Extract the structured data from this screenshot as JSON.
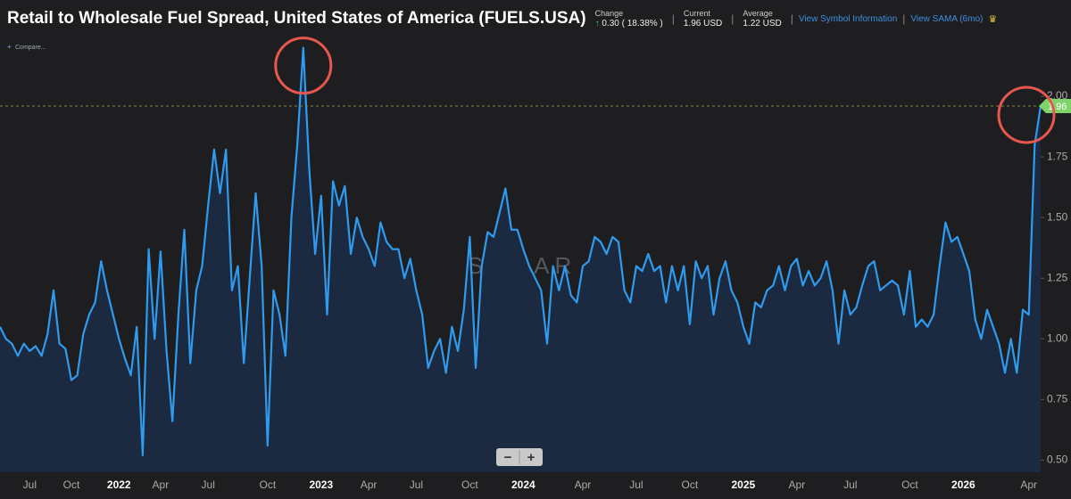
{
  "header": {
    "title": "Retail to Wholesale Fuel Spread, United States of America (FUELS.USA)",
    "change_label": "Change",
    "change_value": "0.30 ( 18.38% )",
    "current_label": "Current",
    "current_value": "1.96 USD",
    "average_label": "Average",
    "average_value": "1.22 USD",
    "link_info": "View Symbol Information",
    "link_sama": "View SAMA (6mo)",
    "compare": "Compare...",
    "watermark": "SONAR",
    "zoom_out": "−",
    "zoom_in": "+"
  },
  "chart_data": {
    "type": "line",
    "color": "#2f9bef",
    "area_color": "#1b2a40",
    "categories": [
      null,
      null,
      null,
      null,
      null,
      "Jul",
      null,
      null,
      null,
      null,
      null,
      null,
      "Oct",
      null,
      null,
      null,
      null,
      null,
      null,
      null,
      "2022",
      null,
      null,
      null,
      null,
      null,
      null,
      "Apr",
      null,
      null,
      null,
      null,
      null,
      null,
      null,
      "Jul",
      null,
      null,
      null,
      null,
      null,
      null,
      null,
      null,
      null,
      "Oct",
      null,
      null,
      null,
      null,
      null,
      null,
      null,
      null,
      "2023",
      null,
      null,
      null,
      null,
      null,
      null,
      null,
      "Apr",
      null,
      null,
      null,
      null,
      null,
      null,
      null,
      "Jul",
      null,
      null,
      null,
      null,
      null,
      null,
      null,
      null,
      "Oct",
      null,
      null,
      null,
      null,
      null,
      null,
      null,
      null,
      "2024",
      null,
      null,
      null,
      null,
      null,
      null,
      null,
      null,
      null,
      "Apr",
      null,
      null,
      null,
      null,
      null,
      null,
      null,
      null,
      "Jul",
      null,
      null,
      null,
      null,
      null,
      null,
      null,
      null,
      "Oct",
      null,
      null,
      null,
      null,
      null,
      null,
      null,
      null,
      "2025",
      null,
      null,
      null,
      null,
      null,
      null,
      null,
      null,
      "Apr",
      null,
      null,
      null,
      null,
      null,
      null,
      null,
      null,
      "Jul",
      null,
      null,
      null,
      null,
      null,
      null,
      null,
      null,
      null,
      "Oct",
      null,
      null,
      null,
      null,
      null,
      null,
      null,
      null,
      "2026",
      null,
      null,
      null,
      null,
      null,
      null,
      null,
      null,
      null,
      null,
      "Apr",
      null,
      null
    ],
    "values": [
      1.05,
      1.0,
      0.98,
      0.93,
      0.98,
      0.95,
      0.97,
      0.93,
      1.02,
      1.2,
      0.98,
      0.96,
      0.83,
      0.85,
      1.02,
      1.1,
      1.15,
      1.32,
      1.2,
      1.1,
      1.0,
      0.92,
      0.85,
      1.05,
      0.52,
      1.37,
      1.0,
      1.36,
      0.95,
      0.66,
      1.1,
      1.45,
      0.9,
      1.2,
      1.3,
      1.55,
      1.78,
      1.6,
      1.78,
      1.2,
      1.3,
      0.9,
      1.25,
      1.6,
      1.3,
      0.56,
      1.2,
      1.1,
      0.93,
      1.5,
      1.8,
      2.2,
      1.7,
      1.35,
      1.59,
      1.1,
      1.65,
      1.55,
      1.63,
      1.35,
      1.5,
      1.42,
      1.37,
      1.3,
      1.48,
      1.4,
      1.37,
      1.37,
      1.25,
      1.33,
      1.2,
      1.1,
      0.88,
      0.95,
      1.0,
      0.86,
      1.05,
      0.95,
      1.12,
      1.42,
      0.88,
      1.3,
      1.44,
      1.42,
      1.52,
      1.62,
      1.45,
      1.45,
      1.37,
      1.3,
      1.25,
      1.2,
      0.98,
      1.3,
      1.2,
      1.3,
      1.18,
      1.15,
      1.3,
      1.32,
      1.42,
      1.4,
      1.35,
      1.42,
      1.4,
      1.2,
      1.15,
      1.3,
      1.28,
      1.35,
      1.28,
      1.3,
      1.15,
      1.3,
      1.2,
      1.3,
      1.06,
      1.32,
      1.25,
      1.3,
      1.1,
      1.25,
      1.32,
      1.2,
      1.15,
      1.05,
      0.98,
      1.15,
      1.13,
      1.2,
      1.22,
      1.3,
      1.2,
      1.3,
      1.33,
      1.22,
      1.28,
      1.22,
      1.25,
      1.32,
      1.2,
      0.98,
      1.2,
      1.1,
      1.13,
      1.22,
      1.3,
      1.32,
      1.2,
      1.22,
      1.24,
      1.22,
      1.1,
      1.28,
      1.05,
      1.08,
      1.05,
      1.1,
      1.3,
      1.48,
      1.4,
      1.42,
      1.35,
      1.28,
      1.08,
      1.0,
      1.12,
      1.05,
      0.98,
      0.86,
      1.0,
      0.86,
      1.12,
      1.1,
      1.8,
      1.96
    ],
    "ylim": [
      0.45,
      2.25
    ],
    "yticks": [
      {
        "value": 0.5,
        "label": "0.50"
      },
      {
        "value": 0.75,
        "label": "0.75"
      },
      {
        "value": 1,
        "label": "1.00"
      },
      {
        "value": 1.25,
        "label": "1.25"
      },
      {
        "value": 1.5,
        "label": "1.50"
      },
      {
        "value": 1.75,
        "label": "1.75"
      },
      {
        "value": 2,
        "label": "2.00"
      }
    ]
  }
}
